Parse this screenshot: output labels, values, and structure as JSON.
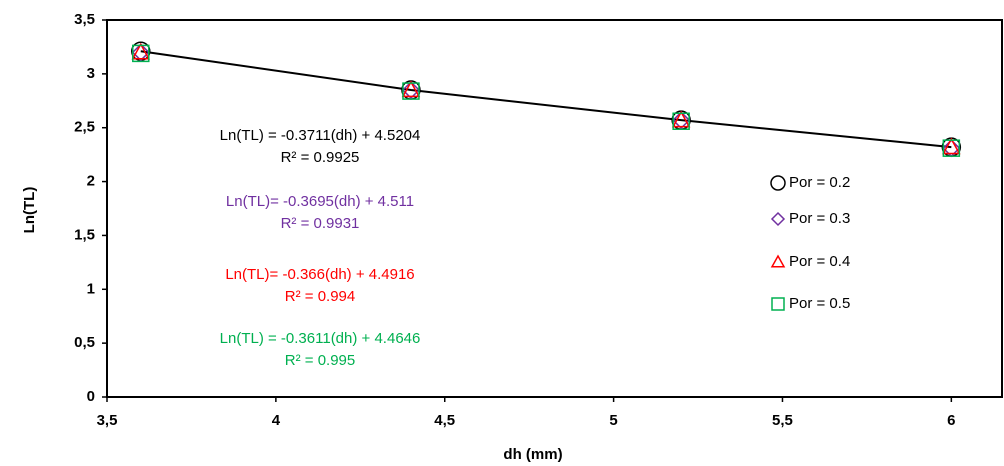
{
  "chart_data": {
    "type": "scatter",
    "x_label": "dh (mm)",
    "y_label": "Ln(TL)",
    "xlim": [
      3.5,
      6.15
    ],
    "ylim": [
      0,
      3.5
    ],
    "xticks": [
      {
        "value": 3.5,
        "label": "3,5"
      },
      4,
      {
        "value": 4.5,
        "label": "4,5"
      },
      5,
      {
        "value": 5.5,
        "label": "5,5"
      },
      6
    ],
    "yticks": [
      0,
      {
        "value": 0.5,
        "label": "0,5"
      },
      1,
      {
        "value": 1.5,
        "label": "1,5"
      },
      2,
      {
        "value": 2.5,
        "label": "2,5"
      },
      3,
      {
        "value": 3.5,
        "label": "3,5"
      }
    ],
    "x": [
      3.6,
      4.4,
      5.2,
      6.0
    ],
    "series": [
      {
        "name": "Por = 0.2",
        "color": "#000000",
        "marker": "circle",
        "values": [
          3.21,
          2.85,
          2.57,
          2.32
        ]
      },
      {
        "name": "Por = 0.3",
        "color": "#7030a0",
        "marker": "diamond",
        "values": [
          3.2,
          2.85,
          2.57,
          2.31
        ]
      },
      {
        "name": "Por = 0.4",
        "color": "#ff0000",
        "marker": "triangle",
        "values": [
          3.2,
          2.85,
          2.57,
          2.32
        ]
      },
      {
        "name": "Por = 0.5",
        "color": "#00b050",
        "marker": "square",
        "values": [
          3.19,
          2.84,
          2.56,
          2.31
        ]
      }
    ],
    "annotations": [
      {
        "equation": "Ln(TL) = -0.3711(dh) + 4.5204",
        "r2": "R² = 0.9925",
        "color": "#000000"
      },
      {
        "equation": "Ln(TL)= -0.3695(dh) + 4.511",
        "r2": "R² = 0.9931",
        "color": "#7030a0"
      },
      {
        "equation": "Ln(TL)= -0.366(dh) + 4.4916",
        "r2": "R² = 0.994",
        "color": "#ff0000"
      },
      {
        "equation": "Ln(TL) = -0.3611(dh) + 4.4646",
        "r2": "R² = 0.995",
        "color": "#00b050"
      }
    ]
  }
}
